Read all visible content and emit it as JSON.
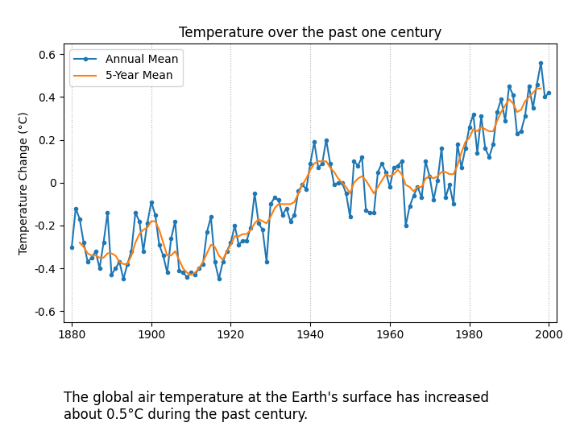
{
  "chart_data": {
    "type": "line",
    "title": "Temperature over the past one century",
    "subtitle": "The global air temperature at the Earth's surface has increased\nabout 0.5°C during the past century.",
    "y_label": "Temperature Change (°C)",
    "x": [
      1880,
      1881,
      1882,
      1883,
      1884,
      1885,
      1886,
      1887,
      1888,
      1889,
      1890,
      1891,
      1892,
      1893,
      1894,
      1895,
      1896,
      1897,
      1898,
      1899,
      1900,
      1901,
      1902,
      1903,
      1904,
      1905,
      1906,
      1907,
      1908,
      1909,
      1910,
      1911,
      1912,
      1913,
      1914,
      1915,
      1916,
      1917,
      1918,
      1919,
      1920,
      1921,
      1922,
      1923,
      1924,
      1925,
      1926,
      1927,
      1928,
      1929,
      1930,
      1931,
      1932,
      1933,
      1934,
      1935,
      1936,
      1937,
      1938,
      1939,
      1940,
      1941,
      1942,
      1943,
      1944,
      1945,
      1946,
      1947,
      1948,
      1949,
      1950,
      1951,
      1952,
      1953,
      1954,
      1955,
      1956,
      1957,
      1958,
      1959,
      1960,
      1961,
      1962,
      1963,
      1964,
      1965,
      1966,
      1967,
      1968,
      1969,
      1970,
      1971,
      1972,
      1973,
      1974,
      1975,
      1976,
      1977,
      1978,
      1979,
      1980,
      1981,
      1982,
      1983,
      1984,
      1985,
      1986,
      1987,
      1988,
      1989,
      1990,
      1991,
      1992,
      1993,
      1994,
      1995,
      1996,
      1997,
      1998,
      1999,
      2000
    ],
    "series": [
      {
        "name": "Annual Mean",
        "marker": "o",
        "line_style": "solid",
        "values": [
          -0.3,
          -0.12,
          -0.17,
          -0.28,
          -0.37,
          -0.35,
          -0.32,
          -0.4,
          -0.28,
          -0.14,
          -0.43,
          -0.4,
          -0.37,
          -0.45,
          -0.38,
          -0.32,
          -0.14,
          -0.18,
          -0.32,
          -0.19,
          -0.09,
          -0.15,
          -0.29,
          -0.34,
          -0.42,
          -0.26,
          -0.18,
          -0.41,
          -0.42,
          -0.44,
          -0.42,
          -0.43,
          -0.4,
          -0.38,
          -0.23,
          -0.16,
          -0.37,
          -0.45,
          -0.37,
          -0.32,
          -0.28,
          -0.2,
          -0.29,
          -0.27,
          -0.27,
          -0.21,
          -0.05,
          -0.19,
          -0.22,
          -0.37,
          -0.1,
          -0.07,
          -0.08,
          -0.15,
          -0.12,
          -0.18,
          -0.15,
          -0.04,
          -0.01,
          -0.03,
          0.09,
          0.19,
          0.07,
          0.09,
          0.2,
          0.09,
          -0.01,
          0.0,
          0.0,
          -0.05,
          -0.16,
          0.1,
          0.08,
          0.12,
          -0.13,
          -0.14,
          -0.14,
          0.05,
          0.09,
          0.05,
          -0.02,
          0.07,
          0.08,
          0.1,
          -0.2,
          -0.11,
          -0.06,
          -0.02,
          -0.07,
          0.1,
          0.03,
          -0.08,
          0.01,
          0.16,
          -0.07,
          -0.01,
          -0.1,
          0.18,
          0.07,
          0.16,
          0.26,
          0.32,
          0.14,
          0.31,
          0.16,
          0.12,
          0.18,
          0.33,
          0.39,
          0.29,
          0.45,
          0.41,
          0.23,
          0.24,
          0.31,
          0.45,
          0.35,
          0.46,
          0.56,
          0.4,
          0.42
        ]
      },
      {
        "name": "5-Year Mean",
        "line_style": "solid",
        "values": [
          null,
          null,
          -0.28,
          -0.3,
          -0.33,
          -0.34,
          -0.34,
          -0.35,
          -0.35,
          -0.33,
          -0.33,
          -0.34,
          -0.37,
          -0.38,
          -0.38,
          -0.34,
          -0.28,
          -0.24,
          -0.22,
          -0.21,
          -0.18,
          -0.18,
          -0.22,
          -0.28,
          -0.34,
          -0.34,
          -0.32,
          -0.36,
          -0.4,
          -0.42,
          -0.43,
          -0.42,
          -0.4,
          -0.37,
          -0.33,
          -0.29,
          -0.3,
          -0.34,
          -0.36,
          -0.32,
          -0.29,
          -0.25,
          -0.25,
          -0.24,
          -0.24,
          -0.22,
          -0.19,
          -0.17,
          -0.18,
          -0.19,
          -0.16,
          -0.12,
          -0.1,
          -0.1,
          -0.1,
          -0.1,
          -0.09,
          -0.05,
          -0.01,
          0.02,
          0.06,
          0.09,
          0.1,
          0.1,
          0.1,
          0.07,
          0.05,
          0.02,
          0.0,
          -0.02,
          -0.05,
          0.0,
          0.02,
          0.03,
          0.01,
          -0.02,
          -0.05,
          -0.02,
          0.01,
          0.04,
          0.03,
          0.04,
          0.06,
          0.04,
          -0.01,
          -0.02,
          -0.04,
          -0.02,
          -0.02,
          0.02,
          0.03,
          0.02,
          0.03,
          0.05,
          0.05,
          0.04,
          0.04,
          0.08,
          0.14,
          0.19,
          0.21,
          0.25,
          0.24,
          0.26,
          0.25,
          0.24,
          0.24,
          0.29,
          0.33,
          0.36,
          0.39,
          0.37,
          0.33,
          0.34,
          0.38,
          0.4,
          0.42,
          0.44,
          0.44,
          null,
          null
        ]
      }
    ],
    "xlim": [
      1878,
      2002
    ],
    "ylim": [
      -0.65,
      0.65
    ],
    "xticks": [
      1880,
      1900,
      1920,
      1940,
      1960,
      1980,
      2000
    ],
    "yticks": [
      -0.6,
      -0.4,
      -0.2,
      0,
      0.2,
      0.4,
      0.6
    ],
    "grid": "x",
    "legend": "upper left"
  }
}
